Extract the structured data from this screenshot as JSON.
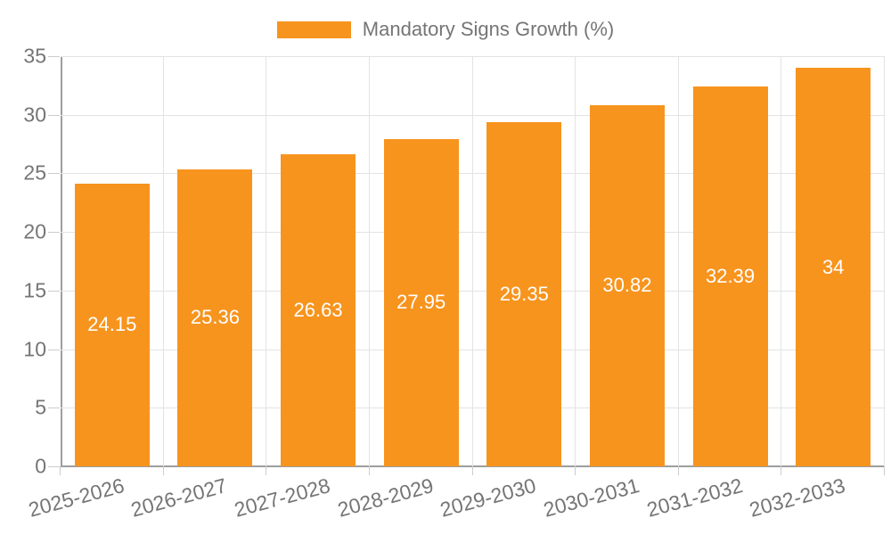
{
  "chart_data": {
    "type": "bar",
    "title": "",
    "legend": {
      "label": "Mandatory Signs Growth (%)",
      "position": "top-center"
    },
    "categories": [
      "2025-2026",
      "2026-2027",
      "2027-2028",
      "2028-2029",
      "2029-2030",
      "2030-2031",
      "2031-2032",
      "2032-2033"
    ],
    "series": [
      {
        "name": "Mandatory Signs Growth (%)",
        "values": [
          24.15,
          25.36,
          26.63,
          27.95,
          29.35,
          30.82,
          32.39,
          34
        ],
        "value_labels": [
          "24.15",
          "25.36",
          "26.63",
          "27.95",
          "29.35",
          "30.82",
          "32.39",
          "34"
        ]
      }
    ],
    "xlabel": "",
    "ylabel": "",
    "ylim": [
      0,
      35
    ],
    "yticks": [
      0,
      5,
      10,
      15,
      20,
      25,
      30,
      35
    ],
    "grid": true,
    "colors": {
      "bar": "#f7941e",
      "bar_value_label": "#ffffff",
      "axis_text": "#757575",
      "grid_line": "#e3e3e3",
      "axis_line": "#9e9e9e",
      "tick_mark": "#cccccc",
      "background": "#ffffff"
    }
  }
}
